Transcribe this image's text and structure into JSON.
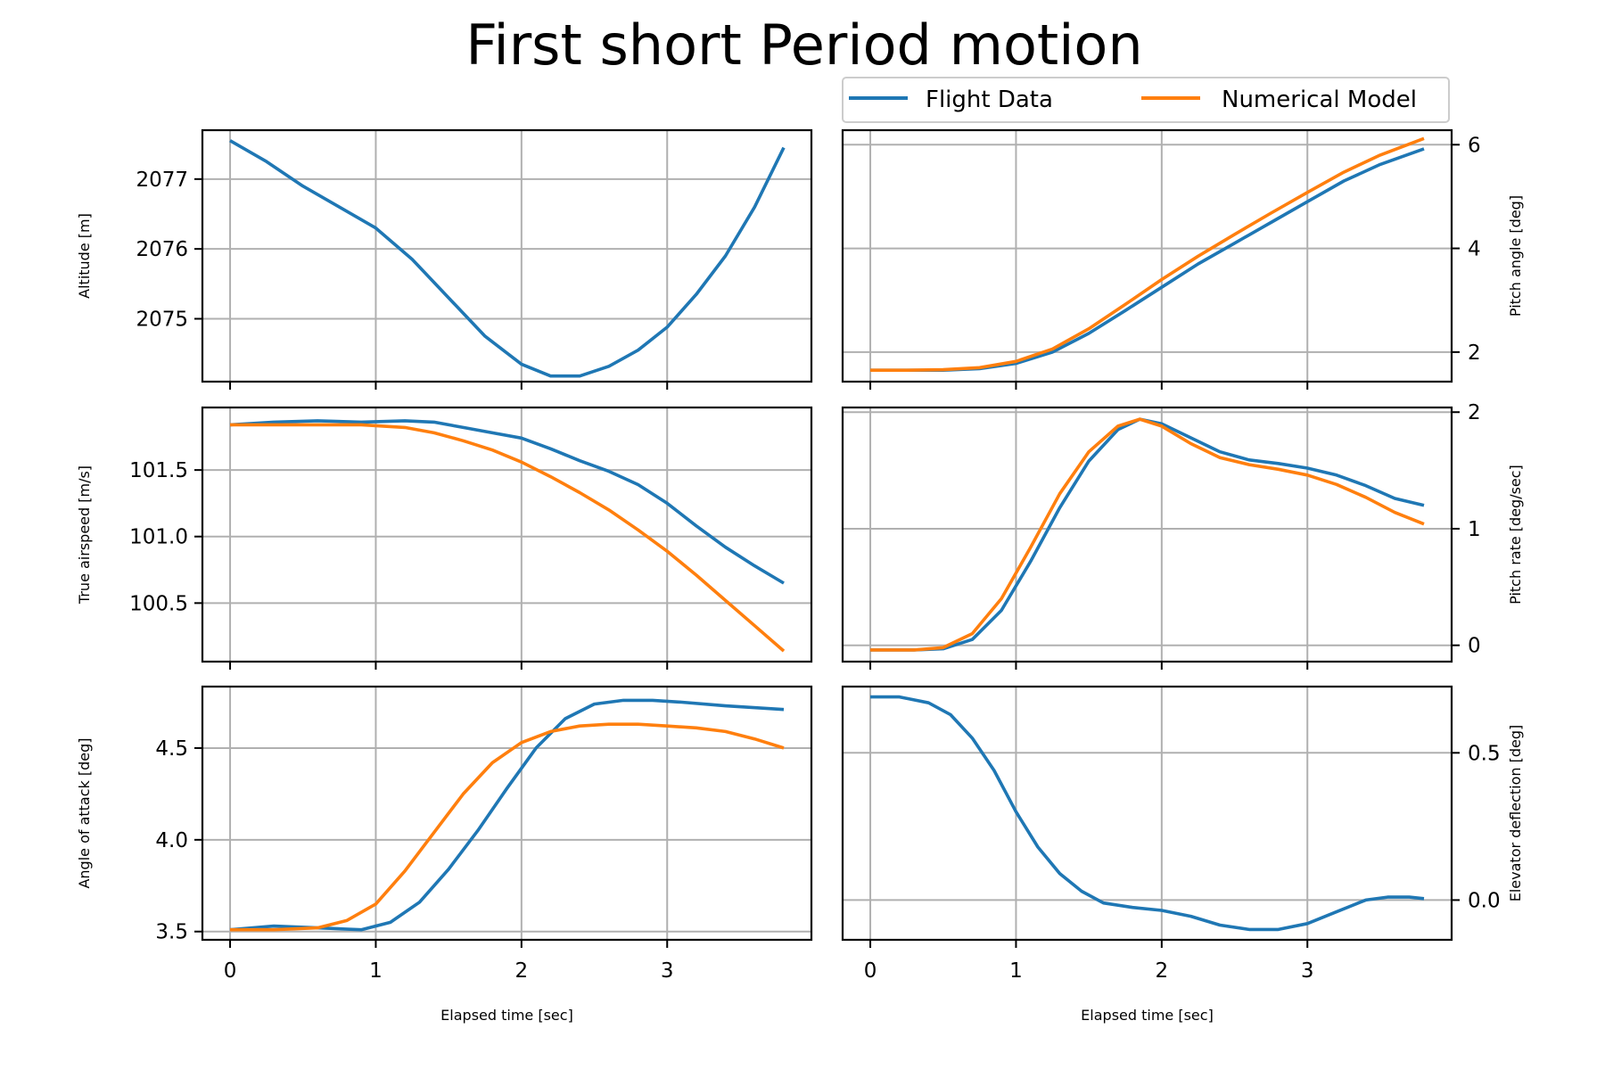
{
  "colors": {
    "flight_data": "#1f77b4",
    "numerical_model": "#ff7f0e",
    "grid": "#b0b0b0"
  },
  "chart_data": {
    "type": "line",
    "title": "First short Period motion",
    "legend": {
      "placement": "top-right",
      "entries": [
        "Flight Data",
        "Numerical Model"
      ]
    },
    "grid": true,
    "subplots": [
      {
        "id": "altitude",
        "ylabel": "Altitude [m]",
        "xlabel": "",
        "ylim": [
          2074.1,
          2077.7
        ],
        "xlim": [
          -0.19,
          3.99
        ],
        "xticks": [
          0,
          1,
          2,
          3
        ],
        "yticks": [
          2075,
          2076,
          2077
        ],
        "ytick_labels": [
          "2075",
          "2076",
          "2077"
        ],
        "series": [
          {
            "name": "Flight Data",
            "x": [
              0,
              0.25,
              0.5,
              0.75,
              1.0,
              1.25,
              1.5,
              1.75,
              2.0,
              2.2,
              2.4,
              2.6,
              2.8,
              3.0,
              3.2,
              3.4,
              3.6,
              3.8
            ],
            "y": [
              2077.55,
              2077.25,
              2076.9,
              2076.6,
              2076.3,
              2075.85,
              2075.3,
              2074.75,
              2074.35,
              2074.18,
              2074.18,
              2074.32,
              2074.55,
              2074.88,
              2075.35,
              2075.9,
              2076.6,
              2077.45
            ]
          }
        ]
      },
      {
        "id": "pitch_angle",
        "ylabel": "Pitch angle [deg]",
        "xlabel": "",
        "ylim": [
          1.43,
          6.28
        ],
        "xlim": [
          -0.19,
          3.99
        ],
        "xticks": [
          0,
          1,
          2,
          3
        ],
        "yticks": [
          2,
          4,
          6
        ],
        "ytick_labels": [
          "2",
          "4",
          "6"
        ],
        "series": [
          {
            "name": "Flight Data",
            "x": [
              0,
              0.25,
              0.5,
              0.75,
              1.0,
              1.25,
              1.5,
              1.75,
              2.0,
              2.25,
              2.5,
              2.75,
              3.0,
              3.25,
              3.5,
              3.8
            ],
            "y": [
              1.65,
              1.65,
              1.65,
              1.68,
              1.78,
              2.0,
              2.36,
              2.8,
              3.25,
              3.7,
              4.1,
              4.5,
              4.9,
              5.3,
              5.62,
              5.92
            ]
          },
          {
            "name": "Numerical Model",
            "x": [
              0,
              0.25,
              0.5,
              0.75,
              1.0,
              1.25,
              1.5,
              1.75,
              2.0,
              2.25,
              2.5,
              2.75,
              3.0,
              3.25,
              3.5,
              3.8
            ],
            "y": [
              1.65,
              1.65,
              1.66,
              1.7,
              1.82,
              2.06,
              2.45,
              2.92,
              3.4,
              3.85,
              4.27,
              4.68,
              5.08,
              5.47,
              5.8,
              6.12
            ]
          }
        ]
      },
      {
        "id": "true_airspeed",
        "ylabel": "True airspeed [m/s]",
        "xlabel": "",
        "ylim": [
          100.06,
          101.97
        ],
        "xlim": [
          -0.19,
          3.99
        ],
        "xticks": [
          0,
          1,
          2,
          3
        ],
        "yticks": [
          100.5,
          101.0,
          101.5
        ],
        "ytick_labels": [
          "100.5",
          "101.0",
          "101.5"
        ],
        "series": [
          {
            "name": "Flight Data",
            "x": [
              0,
              0.3,
              0.6,
              0.9,
              1.2,
              1.4,
              1.6,
              1.8,
              2.0,
              2.2,
              2.4,
              2.6,
              2.8,
              3.0,
              3.2,
              3.4,
              3.6,
              3.8
            ],
            "y": [
              101.84,
              101.86,
              101.87,
              101.86,
              101.87,
              101.86,
              101.82,
              101.78,
              101.74,
              101.66,
              101.57,
              101.49,
              101.39,
              101.25,
              101.08,
              100.92,
              100.78,
              100.65
            ]
          },
          {
            "name": "Numerical Model",
            "x": [
              0,
              0.3,
              0.6,
              0.9,
              1.2,
              1.4,
              1.6,
              1.8,
              2.0,
              2.2,
              2.4,
              2.6,
              2.8,
              3.0,
              3.2,
              3.4,
              3.6,
              3.8
            ],
            "y": [
              101.84,
              101.84,
              101.84,
              101.84,
              101.82,
              101.78,
              101.72,
              101.65,
              101.56,
              101.45,
              101.33,
              101.2,
              101.05,
              100.89,
              100.71,
              100.52,
              100.33,
              100.14
            ]
          }
        ]
      },
      {
        "id": "pitch_rate",
        "ylabel": "Pitch rate [deg/sec]",
        "xlabel": "",
        "ylim": [
          -0.14,
          2.04
        ],
        "xlim": [
          -0.19,
          3.99
        ],
        "xticks": [
          0,
          1,
          2,
          3
        ],
        "yticks": [
          0,
          1,
          2
        ],
        "ytick_labels": [
          "0",
          "1",
          "2"
        ],
        "series": [
          {
            "name": "Flight Data",
            "x": [
              0,
              0.3,
              0.5,
              0.7,
              0.9,
              1.1,
              1.3,
              1.5,
              1.7,
              1.85,
              2.0,
              2.2,
              2.4,
              2.6,
              2.8,
              3.0,
              3.2,
              3.4,
              3.6,
              3.8
            ],
            "y": [
              -0.04,
              -0.04,
              -0.03,
              0.05,
              0.3,
              0.72,
              1.18,
              1.58,
              1.85,
              1.94,
              1.9,
              1.78,
              1.66,
              1.59,
              1.56,
              1.52,
              1.46,
              1.37,
              1.26,
              1.2
            ]
          },
          {
            "name": "Numerical Model",
            "x": [
              0,
              0.3,
              0.5,
              0.7,
              0.9,
              1.1,
              1.3,
              1.5,
              1.7,
              1.85,
              2.0,
              2.2,
              2.4,
              2.6,
              2.8,
              3.0,
              3.2,
              3.4,
              3.6,
              3.8
            ],
            "y": [
              -0.04,
              -0.04,
              -0.02,
              0.1,
              0.4,
              0.84,
              1.3,
              1.66,
              1.88,
              1.94,
              1.88,
              1.73,
              1.61,
              1.55,
              1.51,
              1.46,
              1.38,
              1.27,
              1.14,
              1.04
            ]
          }
        ]
      },
      {
        "id": "angle_of_attack",
        "ylabel": "Angle of attack [deg]",
        "xlabel": "Elapsed time [sec]",
        "ylim": [
          3.455,
          4.835
        ],
        "xlim": [
          -0.19,
          3.99
        ],
        "xticks": [
          0,
          1,
          2,
          3
        ],
        "yticks": [
          3.5,
          4.0,
          4.5
        ],
        "ytick_labels": [
          "3.5",
          "4.0",
          "4.5"
        ],
        "series": [
          {
            "name": "Flight Data",
            "x": [
              0,
              0.3,
              0.6,
              0.9,
              1.1,
              1.3,
              1.5,
              1.7,
              1.9,
              2.1,
              2.3,
              2.5,
              2.7,
              2.9,
              3.1,
              3.4,
              3.8
            ],
            "y": [
              3.51,
              3.53,
              3.52,
              3.51,
              3.55,
              3.66,
              3.84,
              4.05,
              4.28,
              4.5,
              4.66,
              4.74,
              4.76,
              4.76,
              4.75,
              4.73,
              4.71
            ]
          },
          {
            "name": "Numerical Model",
            "x": [
              0,
              0.3,
              0.6,
              0.8,
              1.0,
              1.2,
              1.4,
              1.6,
              1.8,
              2.0,
              2.2,
              2.4,
              2.6,
              2.8,
              3.0,
              3.2,
              3.4,
              3.6,
              3.8
            ],
            "y": [
              3.51,
              3.51,
              3.52,
              3.56,
              3.65,
              3.83,
              4.04,
              4.25,
              4.42,
              4.53,
              4.59,
              4.62,
              4.63,
              4.63,
              4.62,
              4.61,
              4.59,
              4.55,
              4.5
            ]
          }
        ]
      },
      {
        "id": "elevator_deflection",
        "ylabel": "Elevator deflection [deg]",
        "xlabel": "Elapsed time [sec]",
        "ylim": [
          -0.135,
          0.725
        ],
        "xlim": [
          -0.19,
          3.99
        ],
        "xticks": [
          0,
          1,
          2,
          3
        ],
        "yticks": [
          0.0,
          0.5
        ],
        "ytick_labels": [
          "0.0",
          "0.5"
        ],
        "series": [
          {
            "name": "Flight Data",
            "x": [
              0,
              0.2,
              0.4,
              0.55,
              0.7,
              0.85,
              1.0,
              1.15,
              1.3,
              1.45,
              1.6,
              1.8,
              2.0,
              2.2,
              2.4,
              2.6,
              2.8,
              3.0,
              3.2,
              3.4,
              3.55,
              3.7,
              3.8
            ],
            "y": [
              0.69,
              0.69,
              0.67,
              0.63,
              0.55,
              0.44,
              0.3,
              0.18,
              0.09,
              0.03,
              -0.01,
              -0.025,
              -0.035,
              -0.055,
              -0.085,
              -0.1,
              -0.1,
              -0.08,
              -0.04,
              0.0,
              0.01,
              0.01,
              0.005
            ]
          }
        ]
      }
    ]
  }
}
